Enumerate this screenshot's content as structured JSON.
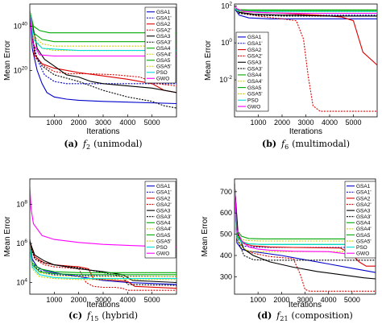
{
  "legend_names": [
    "GSA1",
    "GSA1'",
    "GSA2",
    "GSA2'",
    "GSA3",
    "GSA3'",
    "GSA4",
    "GSA4'",
    "GSA5",
    "GSA5'",
    "PSO",
    "GWO"
  ],
  "series_colors": [
    "#0000cc",
    "#0000cc",
    "#dd0000",
    "#dd0000",
    "#000000",
    "#000000",
    "#00aa00",
    "#cccc00",
    "#00aa00",
    "#cccc00",
    "#00dddd",
    "#ff00ff"
  ],
  "series_dashed": [
    false,
    true,
    false,
    true,
    false,
    true,
    false,
    true,
    false,
    true,
    false,
    false
  ],
  "chart_data": [
    {
      "type": "line",
      "caption_letter": "(a)",
      "caption_func": "f",
      "caption_sub": "2",
      "caption_kind": "(unimodal)",
      "xlabel": "Iterations",
      "ylabel": "Mean Error",
      "y_scale": "log",
      "xlim": [
        0,
        6000
      ],
      "ylim_exp": [
        -1,
        50
      ],
      "xticks": [
        "1000",
        "2000",
        "3000",
        "4000",
        "5000"
      ],
      "xtick_values": [
        1000,
        2000,
        3000,
        4000,
        5000
      ],
      "ytick_base": "10",
      "ytick_exps": [
        "20",
        "40"
      ],
      "ytick_exp_values": [
        20,
        40
      ],
      "legend_position": "top-right",
      "series": [
        {
          "x": [
            0,
            100,
            300,
            500,
            700,
            1000,
            1500,
            2000,
            3000,
            6000
          ],
          "log_y": [
            47,
            30,
            20,
            14,
            10,
            8,
            7,
            6.5,
            6,
            5
          ]
        },
        {
          "x": [
            0,
            100,
            300,
            600,
            1000,
            1500,
            6000
          ],
          "log_y": [
            47,
            35,
            25,
            18,
            15,
            14,
            14
          ]
        },
        {
          "x": [
            0,
            200,
            500,
            1000,
            2000,
            3000,
            4000,
            5000,
            5500,
            6000
          ],
          "log_y": [
            47,
            27,
            23,
            21,
            19,
            17.5,
            16,
            14,
            11,
            10
          ]
        },
        {
          "x": [
            0,
            200,
            600,
            1000,
            1600,
            2500,
            3500,
            4500,
            5200,
            6000
          ],
          "log_y": [
            47,
            26,
            22,
            19.5,
            18.5,
            18.5,
            18,
            17,
            14,
            13
          ]
        },
        {
          "x": [
            0,
            300,
            600,
            1000,
            1500,
            2000,
            2500,
            3000,
            4000,
            5000,
            6000
          ],
          "log_y": [
            47,
            30,
            25,
            22,
            18,
            17,
            15,
            14,
            13,
            12,
            10
          ]
        },
        {
          "x": [
            0,
            200,
            500,
            1000,
            2000,
            3000,
            4000,
            5000,
            5500,
            6000
          ],
          "log_y": [
            47,
            28,
            22,
            18,
            15,
            11,
            8,
            6,
            4,
            3
          ]
        },
        {
          "x": [
            0,
            150,
            400,
            800,
            1500,
            6000
          ],
          "log_y": [
            47,
            40,
            38,
            37,
            37,
            37
          ]
        },
        {
          "x": [
            0,
            150,
            500,
            1000,
            6000
          ],
          "log_y": [
            47,
            36,
            32,
            31,
            31
          ]
        },
        {
          "x": [
            0,
            150,
            500,
            1000,
            6000
          ],
          "log_y": [
            47,
            37,
            34,
            33,
            33
          ]
        },
        {
          "x": [
            0,
            150,
            500,
            1000,
            6000
          ],
          "log_y": [
            47,
            35,
            30,
            29,
            29
          ]
        },
        {
          "x": [
            0,
            150,
            500,
            1200,
            2000,
            6000
          ],
          "log_y": [
            47,
            34,
            30,
            29.5,
            29,
            29
          ]
        },
        {
          "x": [
            0,
            100,
            400,
            1000,
            6000
          ],
          "log_y": [
            47,
            33,
            27,
            26.5,
            26.5
          ]
        }
      ]
    },
    {
      "type": "line",
      "caption_letter": "(b)",
      "caption_func": "f",
      "caption_sub": "6",
      "caption_kind": "(multimodal)",
      "xlabel": "Iterations",
      "ylabel": "Mean Error",
      "y_scale": "log",
      "xlim": [
        0,
        6000
      ],
      "ylim_exp": [
        -4,
        2.1
      ],
      "xticks": [
        "1000",
        "2000",
        "3000",
        "4000",
        "5000"
      ],
      "xtick_values": [
        1000,
        2000,
        3000,
        4000,
        5000
      ],
      "ytick_base": "10",
      "ytick_exps": [
        "-2",
        "0",
        "2"
      ],
      "ytick_exp_values": [
        -2,
        0,
        2
      ],
      "legend_position": "left",
      "series": [
        {
          "x": [
            0,
            200,
            600,
            1500,
            3000,
            4500,
            6000
          ],
          "log_y": [
            1.85,
            1.5,
            1.35,
            1.3,
            1.3,
            1.3,
            1.3
          ]
        },
        {
          "x": [
            0,
            200,
            800,
            2000,
            4000,
            6000
          ],
          "log_y": [
            1.85,
            1.6,
            1.55,
            1.5,
            1.5,
            1.5
          ]
        },
        {
          "x": [
            0,
            300,
            1000,
            2000,
            3500,
            4500,
            5000,
            5400,
            6000
          ],
          "log_y": [
            1.85,
            1.7,
            1.65,
            1.6,
            1.5,
            1.4,
            1.2,
            -0.5,
            -1.2
          ]
        },
        {
          "x": [
            0,
            300,
            1000,
            2000,
            2600,
            2900,
            3100,
            3300,
            3600,
            6000
          ],
          "log_y": [
            1.85,
            1.6,
            1.45,
            1.3,
            1.2,
            0.2,
            -1.8,
            -3.4,
            -3.7,
            -3.7
          ]
        },
        {
          "x": [
            0,
            200,
            800,
            2000,
            4000,
            6000
          ],
          "log_y": [
            1.85,
            1.65,
            1.55,
            1.5,
            1.45,
            1.45
          ]
        },
        {
          "x": [
            0,
            200,
            800,
            2000,
            4000,
            6000
          ],
          "log_y": [
            1.85,
            1.6,
            1.5,
            1.45,
            1.45,
            1.45
          ]
        },
        {
          "x": [
            0,
            150,
            600,
            2000,
            6000
          ],
          "log_y": [
            1.85,
            1.8,
            1.78,
            1.78,
            1.78
          ]
        },
        {
          "x": [
            0,
            150,
            600,
            2000,
            6000
          ],
          "log_y": [
            1.85,
            1.75,
            1.72,
            1.72,
            1.72
          ]
        },
        {
          "x": [
            0,
            150,
            600,
            2000,
            6000
          ],
          "log_y": [
            1.85,
            1.78,
            1.76,
            1.76,
            1.76
          ]
        },
        {
          "x": [
            0,
            150,
            600,
            2000,
            6000
          ],
          "log_y": [
            1.85,
            1.7,
            1.68,
            1.68,
            1.68
          ]
        },
        {
          "x": [
            0,
            150,
            600,
            2000,
            6000
          ],
          "log_y": [
            1.85,
            1.73,
            1.7,
            1.7,
            1.7
          ]
        },
        {
          "x": [
            0,
            100,
            400,
            1500,
            3000,
            6000
          ],
          "log_y": [
            2.0,
            1.85,
            1.7,
            1.62,
            1.6,
            1.6
          ]
        }
      ]
    },
    {
      "type": "line",
      "caption_letter": "(c)",
      "caption_func": "f",
      "caption_sub": "15",
      "caption_kind": "(hybrid)",
      "xlabel": "Iterations",
      "ylabel": "Mean Error",
      "y_scale": "log",
      "xlim": [
        0,
        6000
      ],
      "ylim_exp": [
        3.4,
        9.3
      ],
      "xticks": [
        "1000",
        "2000",
        "3000",
        "4000",
        "5000"
      ],
      "xtick_values": [
        1000,
        2000,
        3000,
        4000,
        5000
      ],
      "ytick_base": "10",
      "ytick_exps": [
        "4",
        "6",
        "8"
      ],
      "ytick_exp_values": [
        4,
        6,
        8
      ],
      "legend_position": "top-right",
      "series": [
        {
          "x": [
            0,
            100,
            300,
            600,
            1000,
            2000,
            3000,
            4000,
            5000,
            6000
          ],
          "log_y": [
            6.2,
            5.2,
            4.8,
            4.6,
            4.5,
            4.3,
            4.1,
            4.0,
            3.95,
            3.9
          ]
        },
        {
          "x": [
            0,
            100,
            300,
            600,
            1000,
            2000,
            6000
          ],
          "log_y": [
            6.0,
            5.0,
            4.7,
            4.5,
            4.4,
            4.35,
            4.3
          ]
        },
        {
          "x": [
            0,
            200,
            600,
            1000,
            1500,
            2000,
            2400,
            2600,
            3500,
            4000,
            4300,
            6000
          ],
          "log_y": [
            6.0,
            5.3,
            5.0,
            4.9,
            4.85,
            4.8,
            4.7,
            4.2,
            4.1,
            4.05,
            3.8,
            3.7
          ]
        },
        {
          "x": [
            0,
            200,
            600,
            1000,
            1500,
            2000,
            2300,
            2600,
            3000,
            3500,
            3800,
            4000,
            6000
          ],
          "log_y": [
            6.0,
            5.2,
            4.9,
            4.8,
            4.75,
            4.7,
            4.0,
            3.8,
            3.75,
            3.75,
            3.7,
            3.6,
            3.6
          ]
        },
        {
          "x": [
            0,
            200,
            600,
            1000,
            2000,
            3000,
            3800,
            4200,
            6000
          ],
          "log_y": [
            6.1,
            5.4,
            5.1,
            4.9,
            4.7,
            4.55,
            4.4,
            4.1,
            4.0
          ]
        },
        {
          "x": [
            0,
            200,
            600,
            1000,
            2000,
            3000,
            3800,
            4000,
            6000
          ],
          "log_y": [
            6.0,
            5.2,
            5.0,
            4.9,
            4.75,
            4.5,
            4.3,
            3.9,
            3.85
          ]
        },
        {
          "x": [
            0,
            100,
            400,
            1000,
            2000,
            6000
          ],
          "log_y": [
            6.0,
            5.0,
            4.7,
            4.55,
            4.5,
            4.5
          ]
        },
        {
          "x": [
            0,
            100,
            400,
            1000,
            2000,
            6000
          ],
          "log_y": [
            5.9,
            4.9,
            4.5,
            4.35,
            4.3,
            4.3
          ]
        },
        {
          "x": [
            0,
            100,
            400,
            1000,
            2000,
            6000
          ],
          "log_y": [
            6.0,
            4.9,
            4.55,
            4.45,
            4.4,
            4.4
          ]
        },
        {
          "x": [
            0,
            100,
            400,
            1000,
            2000,
            6000
          ],
          "log_y": [
            5.8,
            4.7,
            4.3,
            4.2,
            4.15,
            4.15
          ]
        },
        {
          "x": [
            0,
            100,
            400,
            1000,
            2000,
            6000
          ],
          "log_y": [
            5.9,
            4.8,
            4.4,
            4.25,
            4.2,
            4.2
          ]
        },
        {
          "x": [
            0,
            50,
            150,
            500,
            1000,
            2000,
            3000,
            4000,
            5000,
            6000
          ],
          "log_y": [
            9.0,
            7.8,
            7.0,
            6.4,
            6.2,
            6.05,
            5.95,
            5.9,
            5.85,
            5.8
          ]
        }
      ]
    },
    {
      "type": "line",
      "caption_letter": "(d)",
      "caption_func": "f",
      "caption_sub": "21",
      "caption_kind": "(composition)",
      "xlabel": "Iterations",
      "ylabel": "Mean Error",
      "y_scale": "linear",
      "xlim": [
        0,
        6000
      ],
      "ylim": [
        218,
        760
      ],
      "xticks": [
        "1000",
        "2000",
        "3000",
        "4000",
        "5000"
      ],
      "xtick_values": [
        1000,
        2000,
        3000,
        4000,
        5000
      ],
      "yticks": [
        "300",
        "400",
        "500",
        "600",
        "700"
      ],
      "ytick_values": [
        300,
        400,
        500,
        600,
        700
      ],
      "legend_position": "top-right",
      "series": [
        {
          "x": [
            0,
            100,
            300,
            600,
            1000,
            2000,
            3000,
            4000,
            5000,
            6000
          ],
          "y": [
            740,
            460,
            430,
            420,
            415,
            400,
            380,
            360,
            340,
            320
          ]
        },
        {
          "x": [
            0,
            100,
            300,
            800,
            1500,
            6000
          ],
          "y": [
            740,
            470,
            445,
            440,
            438,
            438
          ]
        },
        {
          "x": [
            0,
            150,
            400,
            800,
            1500,
            2500,
            4500,
            5000,
            5300,
            5600,
            6000
          ],
          "y": [
            740,
            480,
            455,
            445,
            440,
            438,
            435,
            405,
            370,
            350,
            350
          ]
        },
        {
          "x": [
            0,
            150,
            400,
            800,
            1500,
            2500,
            2800,
            3000,
            3200,
            6000
          ],
          "y": [
            740,
            470,
            430,
            410,
            395,
            385,
            310,
            240,
            232,
            232
          ]
        },
        {
          "x": [
            0,
            150,
            400,
            800,
            1500,
            2500,
            3500,
            4500,
            5500,
            6000
          ],
          "y": [
            740,
            500,
            430,
            400,
            370,
            345,
            325,
            310,
            295,
            290
          ]
        },
        {
          "x": [
            0,
            150,
            400,
            800,
            1500,
            2500,
            6000
          ],
          "y": [
            740,
            470,
            400,
            380,
            378,
            378,
            378
          ]
        },
        {
          "x": [
            0,
            100,
            300,
            600,
            1200,
            6000
          ],
          "y": [
            740,
            520,
            490,
            480,
            478,
            478
          ]
        },
        {
          "x": [
            0,
            100,
            300,
            600,
            1200,
            6000
          ],
          "y": [
            740,
            500,
            475,
            470,
            468,
            468
          ]
        },
        {
          "x": [
            0,
            100,
            300,
            600,
            1200,
            6000
          ],
          "y": [
            740,
            495,
            465,
            455,
            452,
            452
          ]
        },
        {
          "x": [
            0,
            100,
            300,
            600,
            1200,
            6000
          ],
          "y": [
            740,
            480,
            440,
            420,
            418,
            418
          ]
        },
        {
          "x": [
            0,
            100,
            300,
            600,
            1200,
            6000
          ],
          "y": [
            740,
            490,
            460,
            455,
            452,
            452
          ]
        },
        {
          "x": [
            0,
            100,
            300,
            600,
            1000,
            1500,
            2500,
            4000,
            6000
          ],
          "y": [
            740,
            520,
            470,
            440,
            430,
            425,
            420,
            418,
            390
          ]
        }
      ]
    }
  ]
}
